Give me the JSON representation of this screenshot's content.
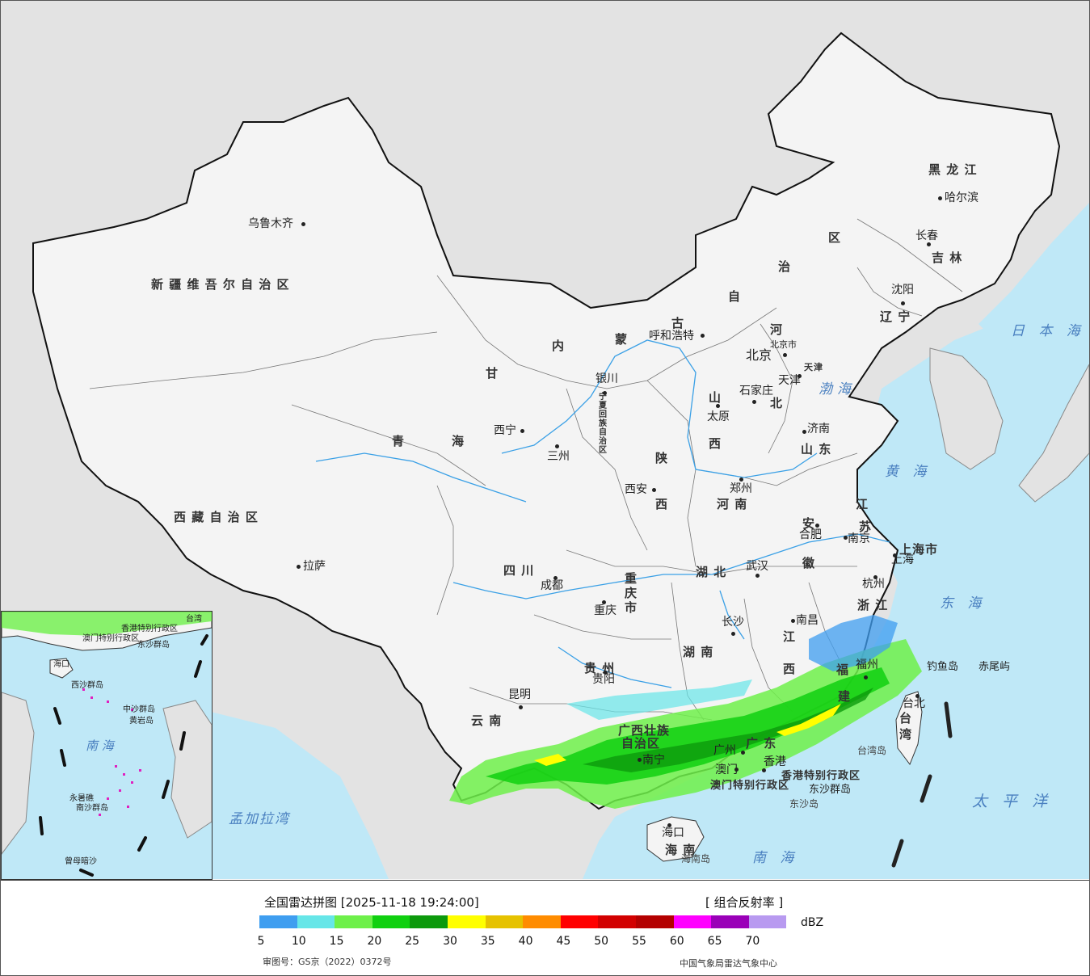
{
  "legend": {
    "title": "全国雷达拼图 [2025-11-18 19:24:00]",
    "product": "[ 组合反射率 ]",
    "unit": "dBZ",
    "scale_colors": [
      "#3f9ef0",
      "#66e6e8",
      "#6ef04a",
      "#10d010",
      "#0c9a0c",
      "#ffff00",
      "#e6c200",
      "#ff8c00",
      "#ff0000",
      "#d20000",
      "#b40000",
      "#ff00ff",
      "#9a00b8",
      "#b89af0"
    ],
    "ticks": [
      "5",
      "10",
      "15",
      "20",
      "25",
      "30",
      "35",
      "40",
      "45",
      "50",
      "55",
      "60",
      "65",
      "70"
    ],
    "approval": "审图号：GS京（2022）0372号",
    "agency": "中国气象局雷达气象中心"
  },
  "regions": {
    "xinjiang": "新 疆 维 吾 尔 自 治 区",
    "xizang": "西 藏 自 治 区",
    "qinghai_a": "青",
    "qinghai_b": "海",
    "gansu": "甘",
    "neimenggu_nei": "内",
    "neimenggu_meng": "蒙",
    "neimenggu_gu": "古",
    "neimenggu_zi": "自",
    "neimenggu_zhi": "治",
    "neimenggu_qu": "区",
    "heilongjiang": "黑 龙 江",
    "jilin": "吉 林",
    "liaoning": "辽 宁",
    "hebei_he": "河",
    "hebei_bei": "北",
    "shanxi_shan": "山",
    "shanxi_xi": "西",
    "shaanxi_shan": "陕",
    "shaanxi_xi": "西",
    "ningxia": "宁夏回族自治区",
    "shandong": "山 东",
    "henan": "河 南",
    "jiangsu_a": "江",
    "jiangsu_b": "苏",
    "anhui_a": "安",
    "anhui_b": "徽",
    "hubei": "湖  北",
    "sichuan": "四  川",
    "chongqing": "重庆市",
    "hunan": "湖  南",
    "jiangxi_a": "江",
    "jiangxi_b": "西",
    "zhejiang": "浙 江",
    "fujian_a": "福",
    "fujian_b": "建",
    "guizhou": "贵  州",
    "yunnan": "云  南",
    "guangxi_a": "广西壮族",
    "guangxi_b": "自治区",
    "guangdong": "广  东",
    "hainan": "海  南",
    "taiwan": "台湾",
    "shanghai": "上海市",
    "tianjin": "天津",
    "beijing_city": "北京市",
    "hk": "香港特别行政区",
    "macau": "澳门特别行政区"
  },
  "cities": {
    "urumqi": "乌鲁木齐",
    "lhasa": "拉萨",
    "xining": "西宁",
    "lanzhou": "三州",
    "yinchuan": "银川",
    "huhehaote": "呼和浩特",
    "beijing": "北京",
    "tianjin": "天津",
    "shijiazhuang": "石家庄",
    "taiyuan": "太原",
    "jinan": "济南",
    "zhengzhou": "郑州",
    "xian": "西安",
    "chengdu": "成都",
    "chongqing": "重庆",
    "wuhan": "武汉",
    "hefei": "合肥",
    "nanjing": "南京",
    "shanghai": "上海",
    "hangzhou": "杭州",
    "nanchang": "南昌",
    "changsha": "长沙",
    "guiyang": "贵阳",
    "kunming": "昆明",
    "nanning": "南宁",
    "guangzhou": "广州",
    "hongkong": "香港",
    "macau": "澳门",
    "fuzhou": "福州",
    "taibei": "台北",
    "haikou": "海口",
    "harbin": "哈尔滨",
    "changchun": "长春",
    "shenyang": "沈阳",
    "diaoyu": "钓鱼岛",
    "chiwei": "赤尾屿",
    "dongsha": "东沙群岛",
    "dongshadao": "东沙岛",
    "hainandao": "海南岛",
    "taiwandao": "台湾岛"
  },
  "seas": {
    "bohai": "渤海",
    "huanghai": "黄 海",
    "donghai": "东 海",
    "nanhai": "南   海",
    "taipingyang": "太 平 洋",
    "ribenhai": "日 本 海",
    "mengjiala": "孟加拉湾"
  },
  "inset": {
    "taiwan": "台湾",
    "nanhai": "南 海",
    "dongsha": "东沙群岛",
    "xisha": "西沙群岛",
    "zhongsha": "中沙群岛",
    "huangyan": "黄岩岛",
    "nansha": "南沙群岛",
    "yongshu": "永暑礁",
    "zengmu": "曾母暗沙",
    "haikou": "海口",
    "hk": "香港特别行政区",
    "macau": "澳门特别行政区"
  },
  "colors": {
    "ocean": "#bfe8f7",
    "land_outside": "#e3e3e3",
    "china_land": "#f2f2f2",
    "river": "#3aa0e6",
    "border": "#111111"
  }
}
